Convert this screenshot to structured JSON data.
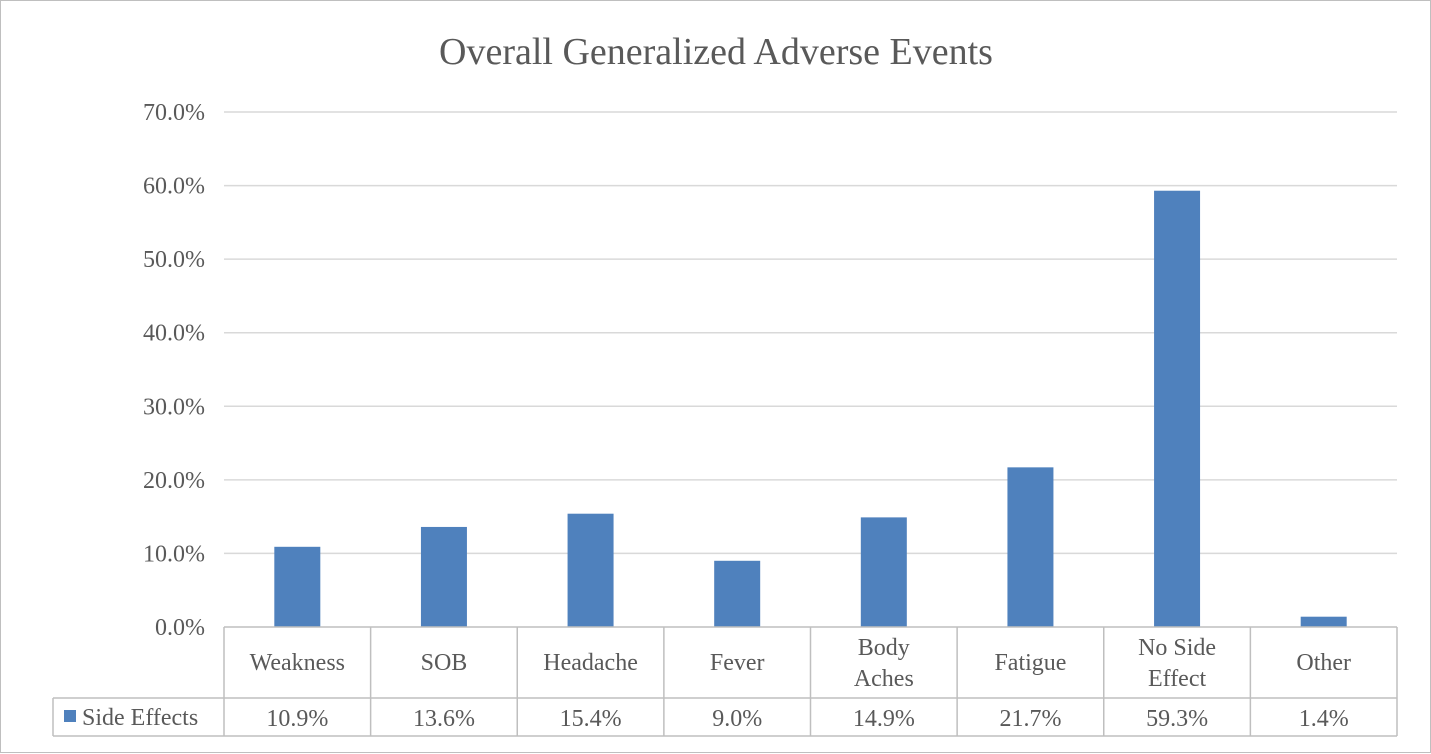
{
  "chart_data": {
    "type": "bar",
    "title": "Overall Generalized Adverse Events",
    "xlabel": "",
    "ylabel": "",
    "categories": [
      "Weakness",
      "SOB",
      "Headache",
      "Fever",
      "Body Aches",
      "Fatigue",
      "No Side Effect",
      "Other"
    ],
    "category_lines": [
      [
        "Weakness"
      ],
      [
        "SOB"
      ],
      [
        "Headache"
      ],
      [
        "Fever"
      ],
      [
        "Body",
        "Aches"
      ],
      [
        "Fatigue"
      ],
      [
        "No Side",
        "Effect"
      ],
      [
        "Other"
      ]
    ],
    "series": [
      {
        "name": "Side Effects",
        "values": [
          10.9,
          13.6,
          15.4,
          9.0,
          14.9,
          21.7,
          59.3,
          1.4
        ],
        "labels": [
          "10.9%",
          "13.6%",
          "15.4%",
          "9.0%",
          "14.9%",
          "21.7%",
          "59.3%",
          "1.4%"
        ],
        "color": "#4f81bd"
      }
    ],
    "ylim": [
      0,
      70
    ],
    "yticks": [
      0,
      10,
      20,
      30,
      40,
      50,
      60,
      70
    ],
    "ytick_labels": [
      "0.0%",
      "10.0%",
      "20.0%",
      "30.0%",
      "40.0%",
      "50.0%",
      "60.0%",
      "70.0%"
    ],
    "grid": true,
    "data_table": true,
    "legend": "in-data-table"
  },
  "colors": {
    "gridline": "#d9d9d9",
    "table_border": "#bfbfbf",
    "text": "#595959"
  }
}
